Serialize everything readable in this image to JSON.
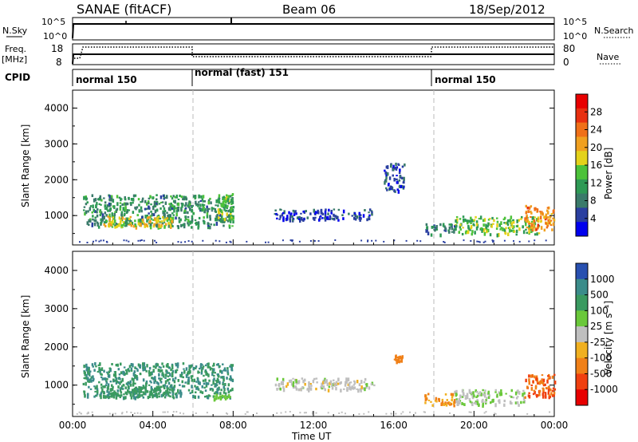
{
  "header": {
    "title": "SANAE (fitACF)",
    "beam": "Beam 06",
    "date": "18/Sep/2012"
  },
  "top_panels": {
    "nsky_label": "N.Sky",
    "nsearch_label": "N.Search",
    "nsky_ticks": [
      "10^5",
      "10^0"
    ],
    "nsky_right_ticks": [
      "10^5",
      "10^0"
    ],
    "freq_label": "Freq.",
    "freq_unit": "[MHz]",
    "freq_ticks": [
      "18",
      "8"
    ],
    "nave_label": "Nave",
    "nave_ticks": [
      "80",
      "0"
    ],
    "cpid_label": "CPID",
    "cpid_segments": [
      {
        "label": "normal 150",
        "start_h": 0
      },
      {
        "label": "normal (fast) 151",
        "start_h": 6
      },
      {
        "label": "normal 150",
        "start_h": 18
      }
    ]
  },
  "x_axis": {
    "label": "Time UT",
    "ticks": [
      "00:00",
      "04:00",
      "08:00",
      "12:00",
      "16:00",
      "20:00",
      "00:00"
    ]
  },
  "y_axis": {
    "label": "Slant Range [km]",
    "ticks": [
      "4000",
      "3000",
      "2000",
      "1000"
    ]
  },
  "power_scale": {
    "label": "Power [dB]",
    "ticks": [
      "28",
      "24",
      "20",
      "16",
      "12",
      "8",
      "4"
    ],
    "colors": [
      "#0000ee",
      "#2a3fa0",
      "#3a7a6a",
      "#2e9a55",
      "#4cc23a",
      "#e4d21a",
      "#f0a020",
      "#f07018",
      "#e83010",
      "#e80000"
    ]
  },
  "velocity_scale": {
    "label": "Velocity [m s⁻¹]",
    "ticks": [
      "1000",
      "500",
      "100",
      "25",
      "-25",
      "-100",
      "-500",
      "-1000"
    ],
    "colors": [
      "#2850b0",
      "#3b8c8a",
      "#3a9a60",
      "#6ac83a",
      "#bfbfbf",
      "#f0b020",
      "#f08018",
      "#f04010",
      "#e80000"
    ]
  },
  "chart_data": {
    "type": "heatmap",
    "x_range_hours": [
      0,
      24
    ],
    "y_range_km": [
      180,
      4500
    ],
    "dashed_lines_hours": [
      6,
      18
    ],
    "power_panel": {
      "echo_regions": [
        {
          "t_start": 0.5,
          "t_end": 8.0,
          "r_min": 700,
          "r_max": 1600,
          "power_db": 10
        },
        {
          "t_start": 1.5,
          "t_end": 5.0,
          "r_min": 700,
          "r_max": 1000,
          "power_db": 18
        },
        {
          "t_start": 7.2,
          "t_end": 8.0,
          "r_min": 900,
          "r_max": 1700,
          "power_db": 14
        },
        {
          "t_start": 10.0,
          "t_end": 15.0,
          "r_min": 900,
          "r_max": 1200,
          "power_db": 5
        },
        {
          "t_start": 15.5,
          "t_end": 16.5,
          "r_min": 1700,
          "r_max": 2500,
          "power_db": 5
        },
        {
          "t_start": 17.5,
          "t_end": 19.0,
          "r_min": 500,
          "r_max": 800,
          "power_db": 8
        },
        {
          "t_start": 19.0,
          "t_end": 23.2,
          "r_min": 500,
          "r_max": 1000,
          "power_db": 14
        },
        {
          "t_start": 22.5,
          "t_end": 24.0,
          "r_min": 600,
          "r_max": 1300,
          "power_db": 22
        }
      ]
    },
    "velocity_panel": {
      "echo_regions": [
        {
          "t_start": 0.5,
          "t_end": 8.0,
          "r_min": 700,
          "r_max": 1600,
          "velocity": 500
        },
        {
          "t_start": 1.5,
          "t_end": 5.0,
          "r_min": 700,
          "r_max": 1000,
          "velocity": 300
        },
        {
          "t_start": 7.0,
          "t_end": 7.8,
          "r_min": 650,
          "r_max": 800,
          "velocity": 60
        },
        {
          "t_start": 10.0,
          "t_end": 15.0,
          "r_min": 900,
          "r_max": 1200,
          "velocity": 0
        },
        {
          "t_start": 16.0,
          "t_end": 16.4,
          "r_min": 1650,
          "r_max": 1800,
          "velocity": -200
        },
        {
          "t_start": 17.5,
          "t_end": 19.0,
          "r_min": 500,
          "r_max": 800,
          "velocity": -100
        },
        {
          "t_start": 19.0,
          "t_end": 22.5,
          "r_min": 500,
          "r_max": 900,
          "velocity": 20
        },
        {
          "t_start": 22.5,
          "t_end": 24.0,
          "r_min": 700,
          "r_max": 1300,
          "velocity": -500
        }
      ]
    }
  }
}
